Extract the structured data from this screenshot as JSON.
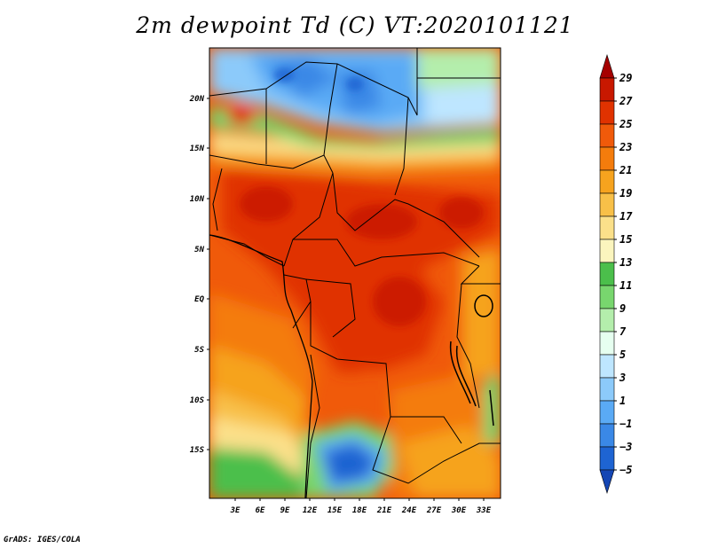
{
  "title": "2m dewpoint Td (C) VT:2020101121",
  "credit": "GrADS: IGES/COLA",
  "latitude_labels": [
    "20N",
    "15N",
    "10N",
    "5N",
    "EQ",
    "5S",
    "10S",
    "15S"
  ],
  "longitude_labels": [
    "3E",
    "6E",
    "9E",
    "12E",
    "15E",
    "18E",
    "21E",
    "24E",
    "27E",
    "30E",
    "33E"
  ],
  "colorbar": {
    "labels": [
      "29",
      "27",
      "25",
      "23",
      "21",
      "19",
      "17",
      "15",
      "13",
      "11",
      "9",
      "7",
      "5",
      "3",
      "1",
      "−1",
      "−3",
      "−5"
    ],
    "colors": [
      "#a50000",
      "#c81800",
      "#e03200",
      "#f05a0a",
      "#f47c0c",
      "#f6a31e",
      "#f8c048",
      "#fbe08a",
      "#fbf5be",
      "#4bbf4b",
      "#78d66e",
      "#b4eeac",
      "#e6fff0",
      "#bee6ff",
      "#8ccafa",
      "#5aaaf5",
      "#3a88e6",
      "#1e64d2",
      "#1446b4"
    ]
  },
  "map": {
    "region": "Central Africa",
    "variable": "2m dewpoint",
    "units": "C"
  }
}
